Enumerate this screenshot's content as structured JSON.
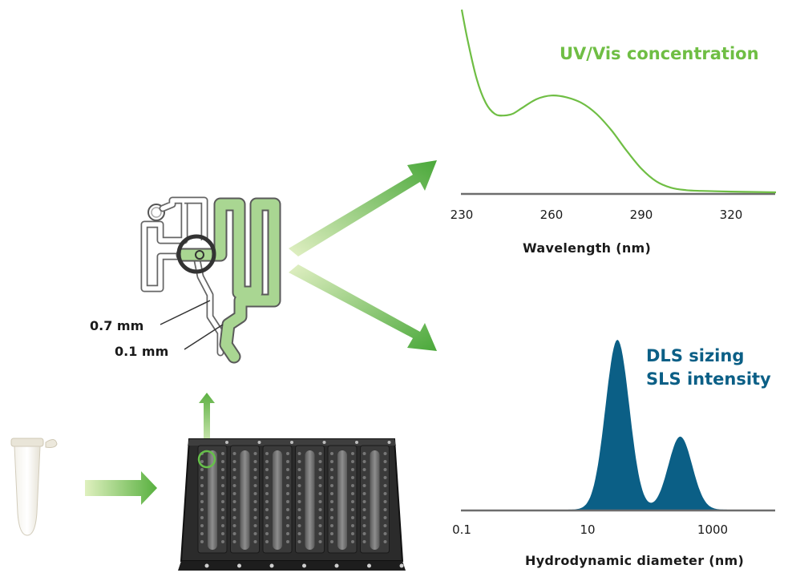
{
  "colors": {
    "uv_green": "#6fbe44",
    "arrow_green": "#5fb040",
    "arrow_light": "#d4ebb0",
    "dls_blue": "#0b5f86",
    "axis_gray": "#6d6d6d"
  },
  "icons": {
    "sample_tube": "microcentrifuge-tube-icon",
    "plate": "microfluidic-plate",
    "chip": "microfluidic-channel"
  },
  "chip": {
    "dim_wide": "0.7 mm",
    "dim_narrow": "0.1 mm"
  },
  "uv_chart": {
    "annotation": "UV/Vis concentration",
    "x_title": "Wavelength (nm)"
  },
  "dls_chart": {
    "annotation_line1": "DLS sizing",
    "annotation_line2": "SLS intensity",
    "x_title": "Hydrodynamic diameter (nm)"
  },
  "chart_data": [
    {
      "type": "line",
      "title": "UV/Vis concentration",
      "xlabel": "Wavelength (nm)",
      "ylabel": "",
      "xticks": [
        230,
        260,
        290,
        320
      ],
      "xlim": [
        230,
        335
      ],
      "x": [
        230,
        232,
        235,
        238,
        241,
        244,
        247,
        250,
        255,
        260,
        265,
        270,
        275,
        280,
        285,
        290,
        295,
        300,
        305,
        310,
        320,
        335
      ],
      "y": [
        1.0,
        0.83,
        0.62,
        0.49,
        0.43,
        0.42,
        0.43,
        0.46,
        0.51,
        0.53,
        0.52,
        0.49,
        0.43,
        0.34,
        0.23,
        0.13,
        0.06,
        0.025,
        0.012,
        0.008,
        0.004,
        0.0
      ],
      "grid": false
    },
    {
      "type": "area",
      "title": "DLS sizing / SLS intensity",
      "xlabel": "Hydrodynamic diameter (nm)",
      "ylabel": "",
      "xscale": "log",
      "xticks": [
        "0.1",
        "10",
        "1000"
      ],
      "xlim": [
        0.1,
        10000
      ],
      "peaks": [
        {
          "center_nm": 30,
          "relative_height": 1.0
        },
        {
          "center_nm": 300,
          "relative_height": 0.43
        }
      ],
      "grid": false
    }
  ]
}
